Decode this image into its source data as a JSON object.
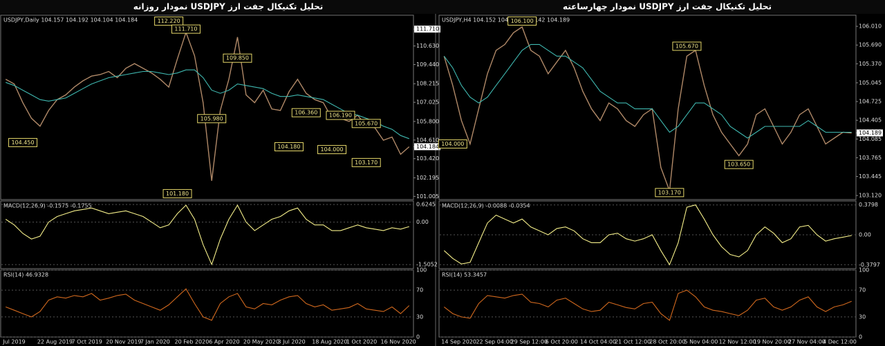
{
  "chart_data": [
    {
      "type": "line",
      "title": "تحلیل تکنیکال جفت ارز USDJPY نمودار روزانه",
      "categories": [
        "Jul 2019",
        null,
        null,
        null,
        "22 Aug 2019",
        null,
        null,
        null,
        "7 Oct 2019",
        null,
        null,
        null,
        "20 Nov 2019",
        null,
        null,
        null,
        "7 Jan 2020",
        null,
        null,
        null,
        "20 Feb 2020",
        null,
        null,
        null,
        "6 Apr 2020",
        null,
        null,
        null,
        "20 May 2020",
        null,
        null,
        null,
        "3 Jul 2020",
        null,
        null,
        null,
        "18 Aug 2020",
        null,
        null,
        null,
        "1 Oct 2020",
        null,
        null,
        null,
        "16 Nov 2020",
        null,
        null,
        null
      ],
      "price": {
        "header": "USDJPY,Daily  104.157 104.192 104.104 104.184",
        "ylim": [
          100.8,
          112.6
        ],
        "yticks": [
          {
            "value": 111.71,
            "label": "111.710",
            "highlight": true
          },
          {
            "value": 110.63,
            "label": "110.630"
          },
          {
            "value": 109.44,
            "label": "109.440"
          },
          108.215,
          107.025,
          {
            "value": 105.8,
            "label": "105.800"
          },
          {
            "value": 104.61,
            "label": "104.610"
          },
          {
            "value": 104.184,
            "label": "104.184",
            "highlight": true
          },
          {
            "value": 103.42,
            "label": "103.420"
          },
          102.195,
          101.005
        ],
        "series": [
          {
            "color": "#b08968",
            "values": [
              108.5,
              108.2,
              107.0,
              106.0,
              105.5,
              106.5,
              107.2,
              107.5,
              108.0,
              108.4,
              108.7,
              108.8,
              109.0,
              108.6,
              109.2,
              109.5,
              109.2,
              108.9,
              108.5,
              108.0,
              109.8,
              111.5,
              110.0,
              107.0,
              102.0,
              106.5,
              108.5,
              111.2,
              107.5,
              107.0,
              107.8,
              106.6,
              106.5,
              107.7,
              108.5,
              107.6,
              107.2,
              107.0,
              106.0,
              106.0,
              105.8,
              106.2,
              105.5,
              105.4,
              104.6,
              104.8,
              103.7,
              104.18
            ]
          },
          {
            "color": "#3fb8b0",
            "values": [
              108.3,
              108.1,
              107.8,
              107.5,
              107.2,
              107.1,
              107.2,
              107.3,
              107.6,
              107.9,
              108.2,
              108.4,
              108.6,
              108.7,
              108.8,
              108.9,
              109.0,
              109.0,
              108.9,
              108.8,
              108.9,
              109.1,
              109.1,
              108.6,
              107.8,
              107.6,
              107.8,
              108.2,
              108.1,
              108.0,
              107.9,
              107.6,
              107.4,
              107.4,
              107.5,
              107.4,
              107.3,
              107.2,
              106.9,
              106.6,
              106.3,
              106.2,
              106.0,
              105.8,
              105.5,
              105.3,
              104.9,
              104.7
            ]
          }
        ],
        "annotations": [
          {
            "x": 19,
            "value": 112.22,
            "label": "112.220"
          },
          {
            "x": 21,
            "value": 111.71,
            "label": "111.710"
          },
          {
            "x": 27,
            "value": 109.85,
            "label": "109.850"
          },
          {
            "x": 35,
            "value": 106.36,
            "label": "106.360"
          },
          {
            "x": 39,
            "value": 106.19,
            "label": "106.190"
          },
          {
            "x": 42,
            "value": 105.67,
            "label": "105.670"
          },
          {
            "x": 24,
            "value": 105.98,
            "label": "105.980"
          },
          {
            "x": 2,
            "value": 104.45,
            "label": "104.450"
          },
          {
            "x": 33,
            "value": 104.18,
            "label": "104.180"
          },
          {
            "x": 38,
            "value": 104.0,
            "label": "104.000"
          },
          {
            "x": 42,
            "value": 103.17,
            "label": "103.170"
          },
          {
            "x": 20,
            "value": 101.18,
            "label": "101.180"
          }
        ]
      },
      "macd": {
        "header": "MACD(12,26,9) -0.1575 -0.1755",
        "ylim": [
          -1.65,
          0.75
        ],
        "grid": true,
        "yticks": [
          0.6245,
          {
            "value": 0,
            "label": "0.00"
          },
          -1.5052
        ],
        "series": [
          {
            "color": "#f5ef8a",
            "values": [
              0.1,
              -0.1,
              -0.4,
              -0.6,
              -0.5,
              0.0,
              0.2,
              0.3,
              0.4,
              0.45,
              0.5,
              0.4,
              0.3,
              0.35,
              0.4,
              0.3,
              0.2,
              0.0,
              -0.2,
              -0.1,
              0.3,
              0.6,
              0.1,
              -0.8,
              -1.5,
              -0.6,
              0.1,
              0.6,
              0.0,
              -0.3,
              -0.1,
              0.1,
              0.2,
              0.4,
              0.5,
              0.1,
              -0.1,
              -0.1,
              -0.3,
              -0.3,
              -0.2,
              -0.1,
              -0.2,
              -0.25,
              -0.3,
              -0.2,
              -0.25,
              -0.1575
            ]
          }
        ]
      },
      "rsi": {
        "header": "RSI(14) 46.9328",
        "ylim": [
          0,
          100
        ],
        "grid": true,
        "yticks": [
          100,
          70,
          30,
          0
        ],
        "series": [
          {
            "color": "#d2691e",
            "values": [
              45,
              40,
              35,
              30,
              38,
              55,
              60,
              58,
              62,
              60,
              65,
              55,
              58,
              62,
              64,
              55,
              50,
              45,
              40,
              48,
              60,
              72,
              50,
              30,
              25,
              50,
              60,
              65,
              45,
              42,
              50,
              48,
              55,
              60,
              62,
              50,
              45,
              48,
              40,
              42,
              44,
              50,
              42,
              40,
              38,
              45,
              35,
              46.9328
            ]
          }
        ]
      }
    },
    {
      "type": "line",
      "title": "تحلیل تکنیکال جفت ارز USDJPY نمودار چهارساعته",
      "categories": [
        "14 Sep 2020",
        null,
        null,
        null,
        "22 Sep 04:00",
        null,
        null,
        null,
        "29 Sep 12:00",
        null,
        null,
        null,
        "6 Oct 20:00",
        null,
        null,
        null,
        "14 Oct 04:00",
        null,
        null,
        null,
        "21 Oct 12:00",
        null,
        null,
        null,
        "28 Oct 20:00",
        null,
        null,
        null,
        "5 Nov 04:00",
        null,
        null,
        null,
        "12 Nov 12:00",
        null,
        null,
        null,
        "19 Nov 20:00",
        null,
        null,
        null,
        "27 Nov 04:00",
        null,
        null,
        null,
        "4 Dec 12:00",
        null,
        null,
        null
      ],
      "price": {
        "header": "USDJPY,H4  104.152 104.192 104.142 104.189",
        "ylim": [
          103.05,
          106.2
        ],
        "yticks": [
          {
            "value": 106.01,
            "label": "106.010"
          },
          {
            "value": 105.69,
            "label": "105.690"
          },
          {
            "value": 105.37,
            "label": "105.370"
          },
          105.045,
          104.725,
          104.405,
          {
            "value": 104.189,
            "label": "104.189",
            "highlight": true
          },
          104.085,
          103.765,
          103.445,
          {
            "value": 103.12,
            "label": "103.120"
          }
        ],
        "series": [
          {
            "color": "#b08968",
            "values": [
              105.5,
              105.0,
              104.4,
              104.0,
              104.6,
              105.2,
              105.6,
              105.7,
              105.9,
              106.0,
              105.6,
              105.5,
              105.2,
              105.4,
              105.6,
              105.3,
              104.9,
              104.6,
              104.4,
              104.7,
              104.6,
              104.4,
              104.3,
              104.5,
              104.6,
              103.6,
              103.2,
              104.6,
              105.5,
              105.6,
              105.0,
              104.5,
              104.2,
              104.0,
              103.8,
              104.0,
              104.5,
              104.6,
              104.3,
              104.0,
              104.2,
              104.5,
              104.6,
              104.3,
              104.0,
              104.1,
              104.2,
              104.189
            ]
          },
          {
            "color": "#3fb8b0",
            "values": [
              105.5,
              105.3,
              105.0,
              104.8,
              104.7,
              104.8,
              105.0,
              105.2,
              105.4,
              105.6,
              105.7,
              105.7,
              105.6,
              105.5,
              105.5,
              105.4,
              105.3,
              105.1,
              104.9,
              104.8,
              104.7,
              104.7,
              104.6,
              104.6,
              104.6,
              104.4,
              104.2,
              104.3,
              104.5,
              104.7,
              104.7,
              104.6,
              104.5,
              104.3,
              104.2,
              104.1,
              104.2,
              104.3,
              104.3,
              104.3,
              104.3,
              104.3,
              104.4,
              104.3,
              104.2,
              104.2,
              104.2,
              104.2
            ]
          }
        ],
        "annotations": [
          {
            "x": 9,
            "value": 106.1,
            "label": "106.100"
          },
          {
            "x": 28,
            "value": 105.67,
            "label": "105.670"
          },
          {
            "x": 1,
            "value": 104.0,
            "label": "104.000"
          },
          {
            "x": 34,
            "value": 103.65,
            "label": "103.650"
          },
          {
            "x": 26,
            "value": 103.17,
            "label": "103.170"
          }
        ]
      },
      "macd": {
        "header": "MACD(12,26,9) -0.0088 -0.0354",
        "ylim": [
          -0.43,
          0.43
        ],
        "grid": true,
        "yticks": [
          0.3798,
          {
            "value": 0,
            "label": "0.00"
          },
          -0.3797
        ],
        "series": [
          {
            "color": "#f5ef8a",
            "values": [
              -0.2,
              -0.3,
              -0.37,
              -0.35,
              -0.1,
              0.15,
              0.25,
              0.2,
              0.15,
              0.2,
              0.1,
              0.05,
              0.0,
              0.08,
              0.1,
              0.05,
              -0.05,
              -0.1,
              -0.1,
              0.0,
              0.02,
              -0.05,
              -0.08,
              -0.05,
              0.0,
              -0.2,
              -0.38,
              -0.1,
              0.35,
              0.38,
              0.2,
              0.0,
              -0.15,
              -0.25,
              -0.28,
              -0.2,
              0.0,
              0.1,
              0.02,
              -0.1,
              -0.05,
              0.1,
              0.12,
              0.0,
              -0.08,
              -0.05,
              -0.03,
              -0.0088
            ]
          }
        ]
      },
      "rsi": {
        "header": "RSI(14) 53.3457",
        "ylim": [
          0,
          100
        ],
        "grid": true,
        "yticks": [
          100,
          70,
          30,
          0
        ],
        "series": [
          {
            "color": "#d2691e",
            "values": [
              45,
              35,
              30,
              28,
              50,
              62,
              60,
              58,
              62,
              64,
              52,
              50,
              45,
              55,
              58,
              50,
              42,
              38,
              40,
              52,
              48,
              44,
              42,
              50,
              52,
              35,
              25,
              65,
              70,
              60,
              45,
              40,
              38,
              35,
              32,
              40,
              55,
              58,
              45,
              40,
              45,
              55,
              60,
              45,
              38,
              45,
              48,
              53.3457
            ]
          }
        ]
      }
    }
  ]
}
